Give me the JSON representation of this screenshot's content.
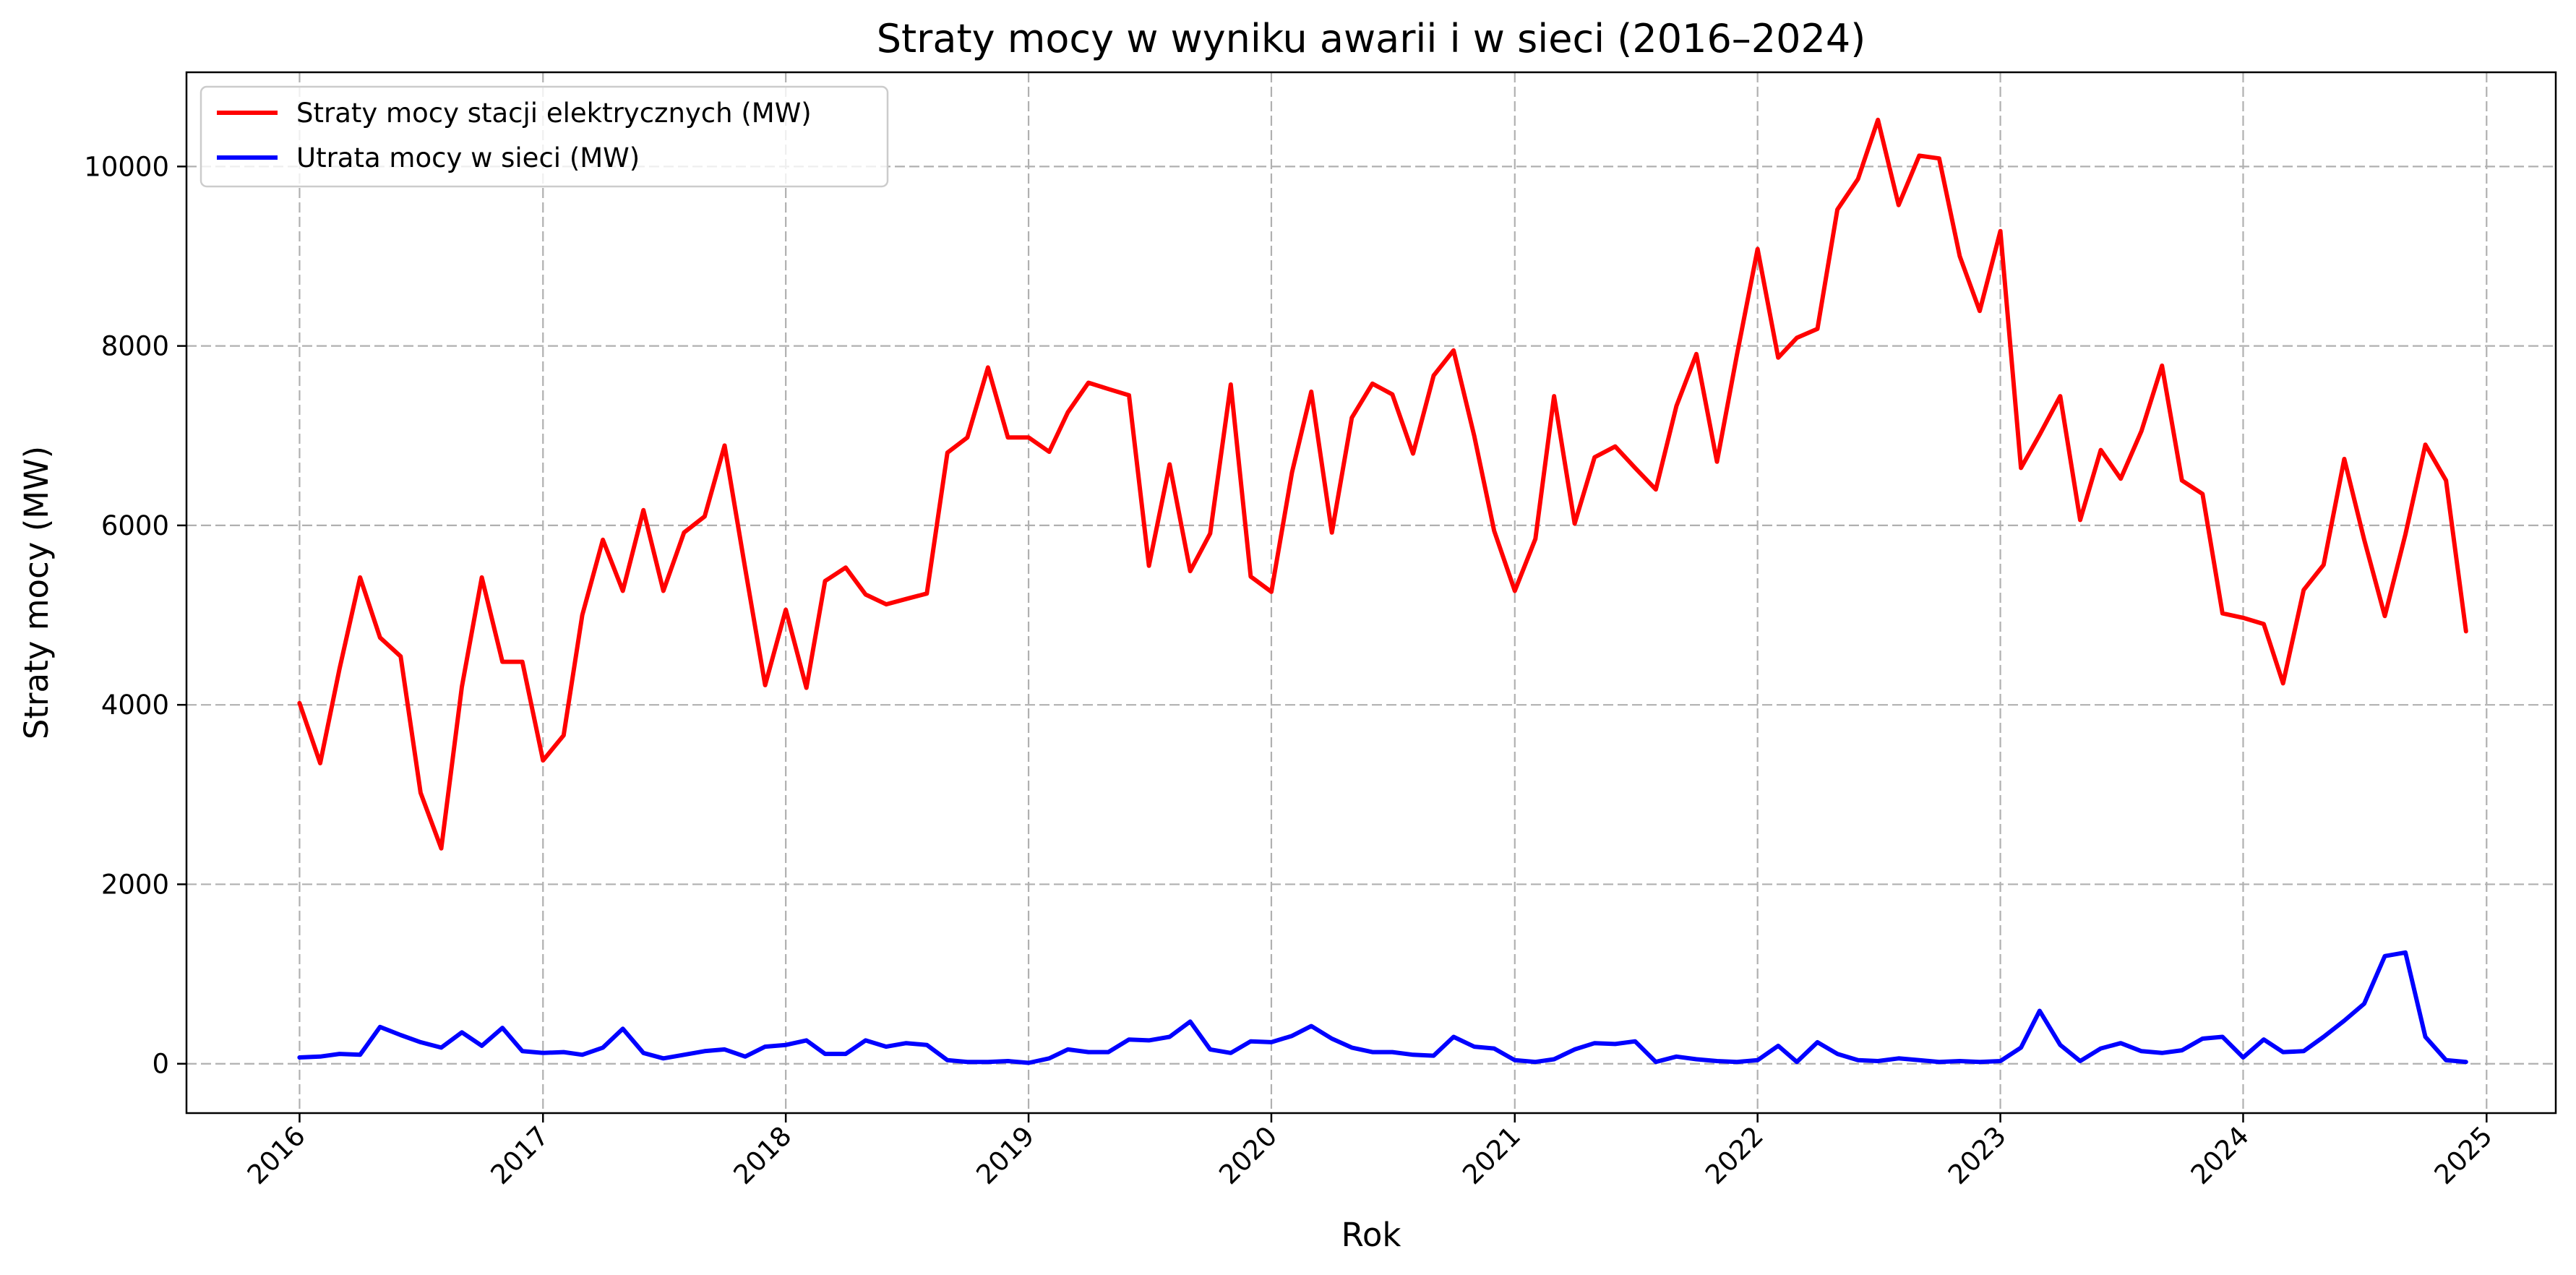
{
  "chart_data": {
    "type": "line",
    "title": "Straty mocy w wyniku awarii i w sieci (2016–2024)",
    "xlabel": "Rok",
    "ylabel": "Straty mocy (MW)",
    "xlim": [
      "2015-07-15",
      "2025-04-15"
    ],
    "ylim": [
      -550,
      11050
    ],
    "grid": true,
    "legend_position": "top-left",
    "x_ticks": [
      "2016",
      "2017",
      "2018",
      "2019",
      "2020",
      "2021",
      "2022",
      "2023",
      "2024",
      "2025"
    ],
    "y_ticks": [
      0,
      2000,
      4000,
      6000,
      8000,
      10000
    ],
    "x": [
      "2016-01",
      "2016-02",
      "2016-03",
      "2016-04",
      "2016-05",
      "2016-06",
      "2016-07",
      "2016-08",
      "2016-09",
      "2016-10",
      "2016-11",
      "2016-12",
      "2017-01",
      "2017-02",
      "2017-03",
      "2017-04",
      "2017-05",
      "2017-06",
      "2017-07",
      "2017-08",
      "2017-09",
      "2017-10",
      "2017-11",
      "2017-12",
      "2018-01",
      "2018-02",
      "2018-03",
      "2018-04",
      "2018-05",
      "2018-06",
      "2018-07",
      "2018-08",
      "2018-09",
      "2018-10",
      "2018-11",
      "2018-12",
      "2019-01",
      "2019-02",
      "2019-03",
      "2019-04",
      "2019-05",
      "2019-06",
      "2019-07",
      "2019-08",
      "2019-09",
      "2019-10",
      "2019-11",
      "2019-12",
      "2020-01",
      "2020-02",
      "2020-03",
      "2020-04",
      "2020-05",
      "2020-06",
      "2020-07",
      "2020-08",
      "2020-09",
      "2020-10",
      "2020-11",
      "2020-12",
      "2021-01",
      "2021-02",
      "2021-03",
      "2021-04",
      "2021-05",
      "2021-06",
      "2021-07",
      "2021-08",
      "2021-09",
      "2021-10",
      "2021-11",
      "2021-12",
      "2022-01",
      "2022-02",
      "2022-03",
      "2022-04",
      "2022-05",
      "2022-06",
      "2022-07",
      "2022-08",
      "2022-09",
      "2022-10",
      "2022-11",
      "2022-12",
      "2023-01",
      "2023-02",
      "2023-03",
      "2023-04",
      "2023-05",
      "2023-06",
      "2023-07",
      "2023-08",
      "2023-09",
      "2023-10",
      "2023-11",
      "2023-12",
      "2024-01",
      "2024-02",
      "2024-03",
      "2024-04",
      "2024-05",
      "2024-06",
      "2024-07",
      "2024-08",
      "2024-09",
      "2024-10",
      "2024-11",
      "2024-12"
    ],
    "series": [
      {
        "name": "Straty mocy stacji elektrycznych (MW)",
        "color": "#ff0000",
        "values": [
          4020,
          3350,
          4400,
          5420,
          4750,
          4540,
          3020,
          2400,
          4200,
          5420,
          4480,
          4480,
          3380,
          3660,
          5000,
          5840,
          5270,
          6170,
          5270,
          5920,
          6100,
          6890,
          5520,
          4220,
          5060,
          4190,
          5380,
          5530,
          5230,
          5120,
          5180,
          5240,
          6810,
          6980,
          7760,
          6980,
          6980,
          6820,
          7260,
          7590,
          7520,
          7450,
          5550,
          6680,
          5490,
          5910,
          7570,
          5430,
          5260,
          6590,
          7490,
          5920,
          7200,
          7580,
          7460,
          6800,
          7670,
          7950,
          7000,
          5940,
          5270,
          5850,
          7440,
          6020,
          6760,
          6880,
          6640,
          6400,
          7330,
          7910,
          6710,
          7900,
          9080,
          7870,
          8090,
          8190,
          9520,
          9860,
          10520,
          9570,
          10120,
          10090,
          9000,
          8390,
          9280,
          6640,
          7010,
          7440,
          6060,
          6840,
          6520,
          7050,
          7780,
          6500,
          6350,
          5020,
          4970,
          4900,
          4240,
          5280,
          5560,
          6740,
          5840,
          4990,
          5900,
          6900,
          6500,
          4820
        ]
      },
      {
        "name": "Utrata mocy w sieci (MW)",
        "color": "#0000ff",
        "values": [
          70,
          80,
          110,
          100,
          410,
          320,
          240,
          180,
          350,
          200,
          400,
          140,
          120,
          130,
          100,
          180,
          390,
          120,
          60,
          100,
          140,
          160,
          80,
          190,
          210,
          260,
          110,
          110,
          260,
          190,
          230,
          210,
          40,
          20,
          20,
          30,
          10,
          60,
          160,
          130,
          130,
          270,
          260,
          300,
          470,
          160,
          120,
          250,
          240,
          310,
          420,
          280,
          180,
          130,
          130,
          100,
          90,
          300,
          190,
          170,
          40,
          20,
          50,
          160,
          230,
          220,
          250,
          20,
          80,
          50,
          30,
          20,
          40,
          200,
          20,
          240,
          110,
          40,
          30,
          60,
          40,
          20,
          30,
          20,
          30,
          180,
          590,
          210,
          30,
          170,
          230,
          140,
          120,
          150,
          280,
          300,
          70,
          270,
          130,
          140,
          300,
          480,
          670,
          1200,
          1240,
          300,
          40,
          20
        ]
      }
    ]
  }
}
